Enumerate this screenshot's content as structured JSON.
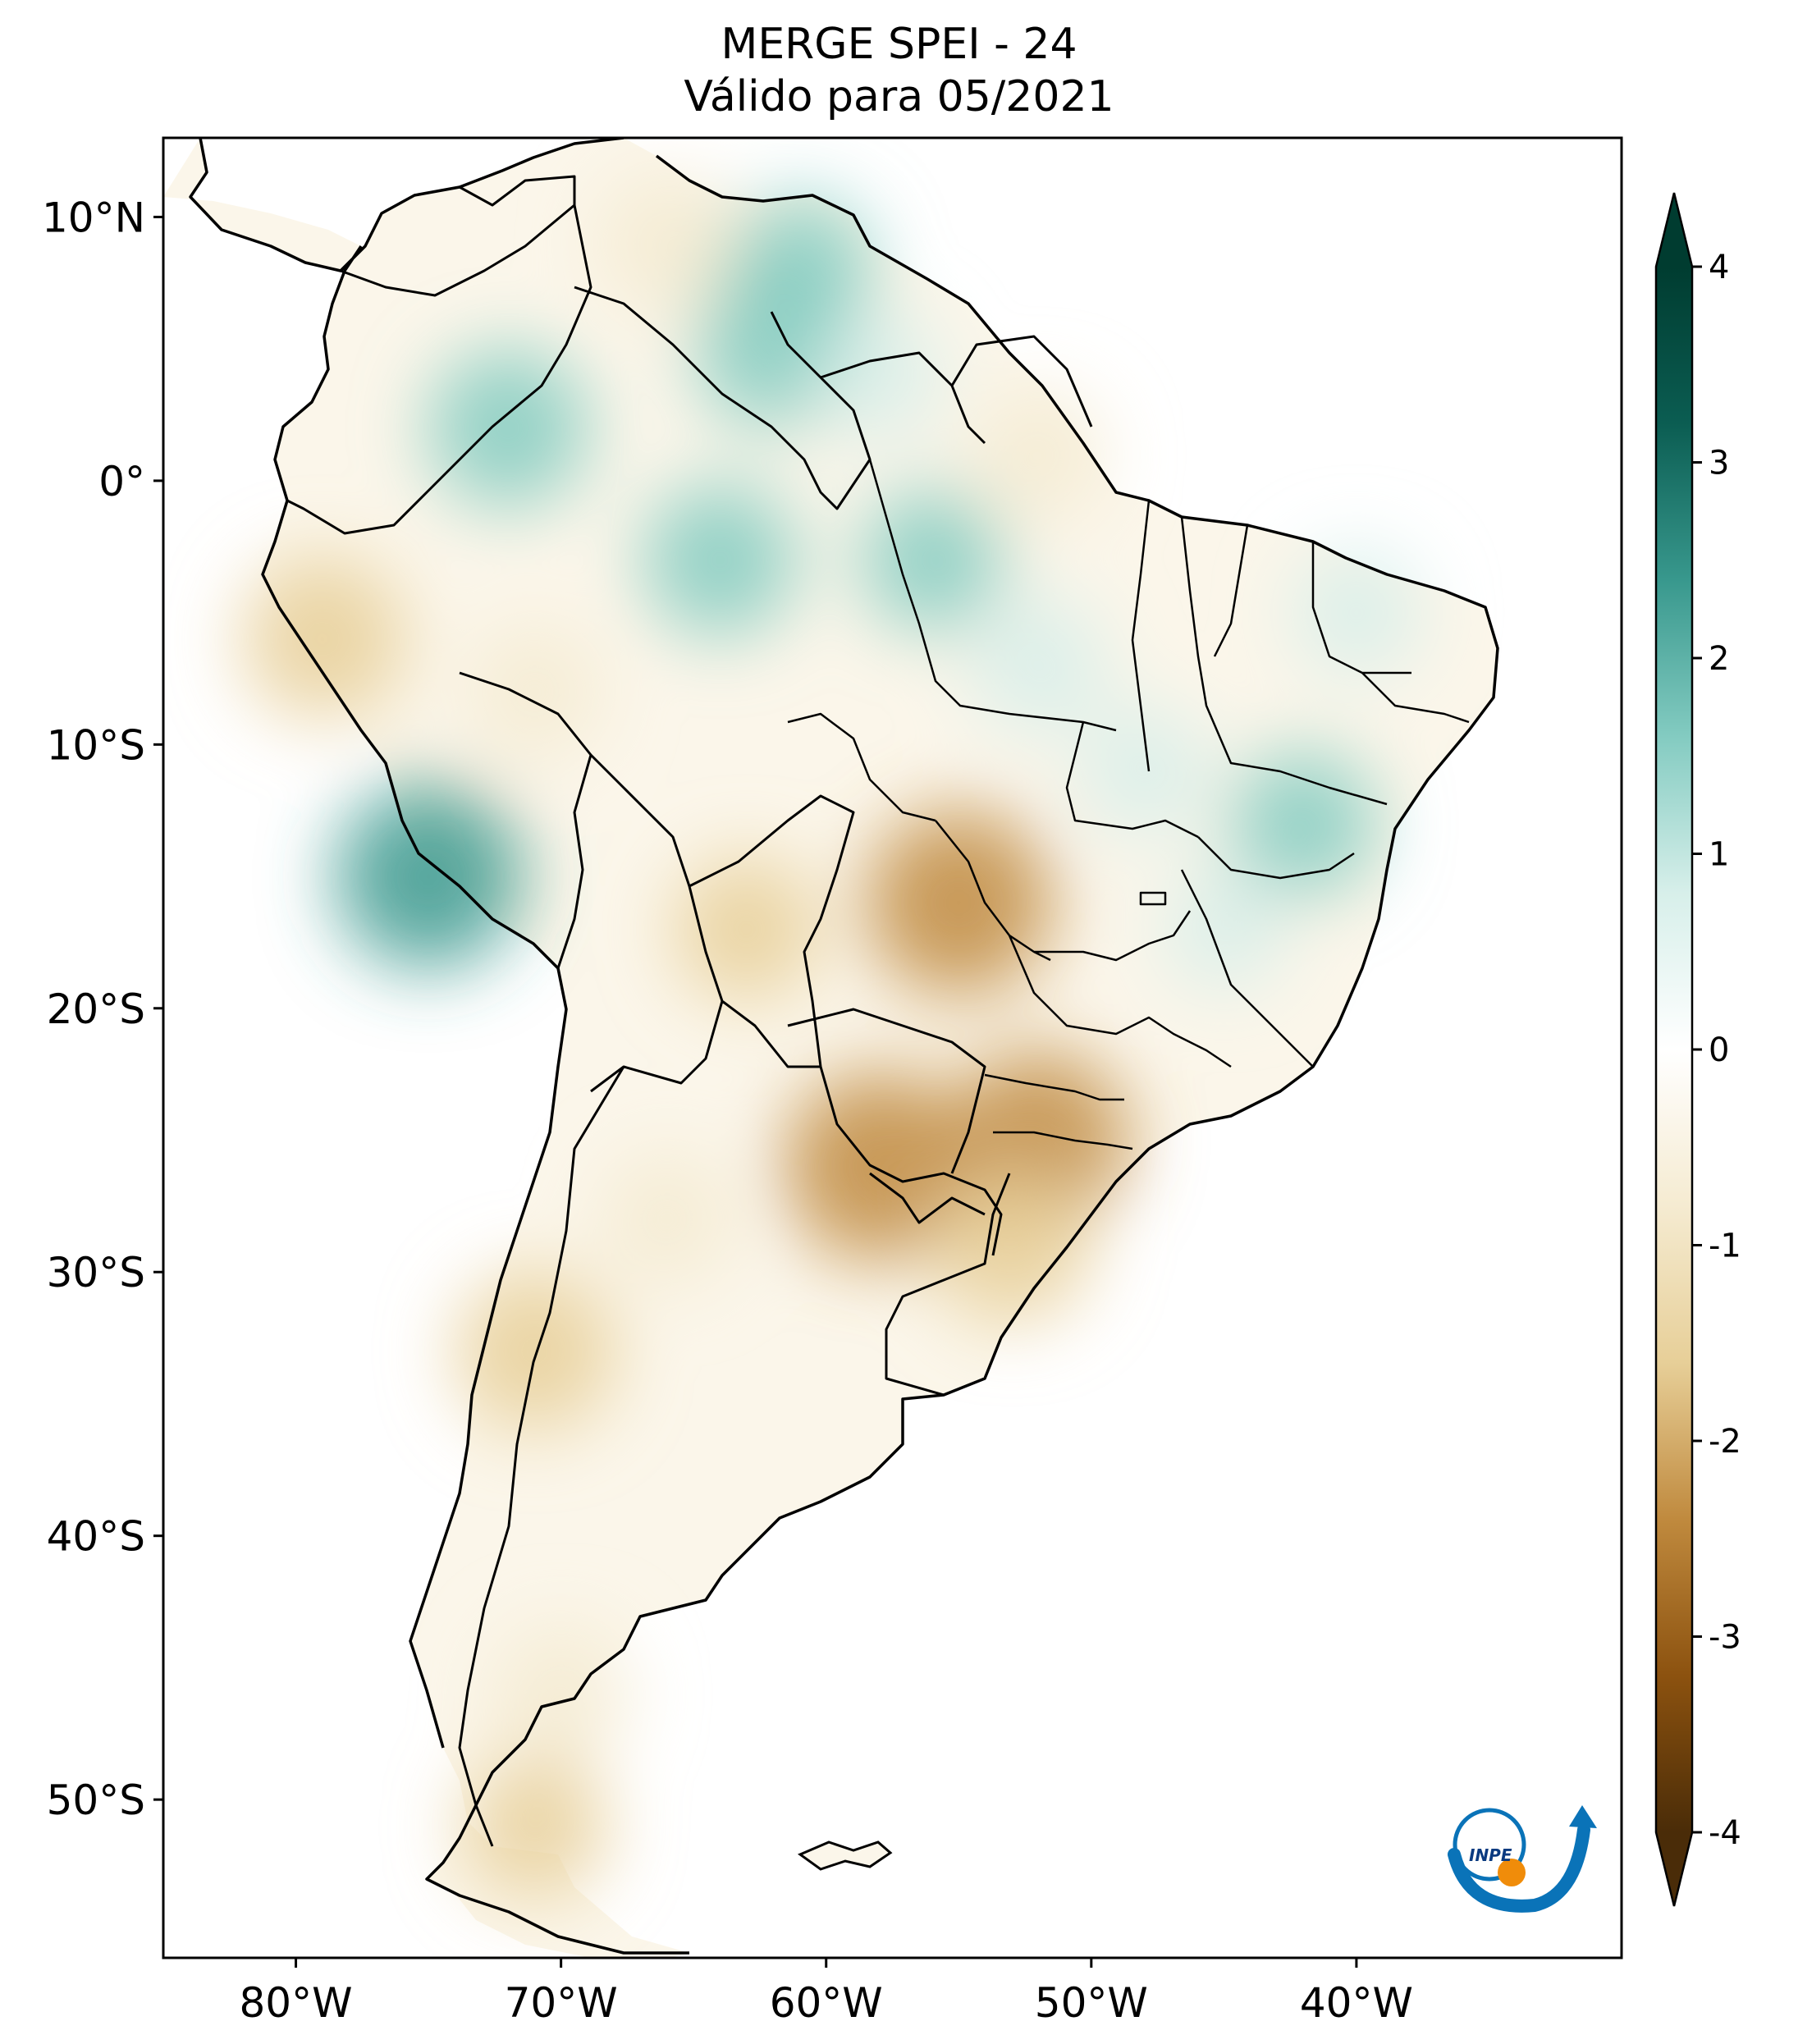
{
  "title": {
    "line1": "MERGE   SPEI - 24",
    "line2": "Válido para 05/2021"
  },
  "map": {
    "lon_range": [
      -85,
      -30
    ],
    "lat_range": [
      -56,
      13
    ],
    "lon_ticks": [
      {
        "value": -80,
        "label": "80°W"
      },
      {
        "value": -70,
        "label": "70°W"
      },
      {
        "value": -60,
        "label": "60°W"
      },
      {
        "value": -50,
        "label": "50°W"
      },
      {
        "value": -40,
        "label": "40°W"
      }
    ],
    "lat_ticks": [
      {
        "value": 10,
        "label": "10°N"
      },
      {
        "value": 0,
        "label": "0°"
      },
      {
        "value": -10,
        "label": "10°S"
      },
      {
        "value": -20,
        "label": "20°S"
      },
      {
        "value": -30,
        "label": "30°S"
      },
      {
        "value": -40,
        "label": "40°S"
      },
      {
        "value": -50,
        "label": "50°S"
      }
    ]
  },
  "colorbar": {
    "min": -4,
    "max": 4,
    "ticks": [
      {
        "value": 4,
        "label": "4"
      },
      {
        "value": 3,
        "label": "3"
      },
      {
        "value": 2,
        "label": "2"
      },
      {
        "value": 1,
        "label": "1"
      },
      {
        "value": 0,
        "label": "0"
      },
      {
        "value": -1,
        "label": "-1"
      },
      {
        "value": -2,
        "label": "-2"
      },
      {
        "value": -3,
        "label": "-3"
      },
      {
        "value": -4,
        "label": "-4"
      }
    ],
    "colors": [
      "#4a2c08",
      "#8c520f",
      "#c08a3e",
      "#e7cf98",
      "#f5ebd1",
      "#ffffff",
      "#d7efea",
      "#83cbc1",
      "#38988d",
      "#0b5d52",
      "#003c30"
    ]
  },
  "anomaly_regions": [
    {
      "name": "central-brazil-dry",
      "lon": -55,
      "lat": -16,
      "value": -2.4
    },
    {
      "name": "parana-dry",
      "lon": -52,
      "lat": -25,
      "value": -2.2
    },
    {
      "name": "paraguay-dry",
      "lon": -58,
      "lat": -26,
      "value": -2.5
    },
    {
      "name": "rio-grande-dry",
      "lon": -53,
      "lat": -29,
      "value": -1.6
    },
    {
      "name": "northern-peru-dry",
      "lon": -79,
      "lat": -6,
      "value": -1.8
    },
    {
      "name": "bolivia-dry",
      "lon": -63,
      "lat": -17,
      "value": -1.3
    },
    {
      "name": "chile-dry",
      "lon": -71,
      "lat": -33,
      "value": -1.7
    },
    {
      "name": "argentina-dry",
      "lon": -66,
      "lat": -28,
      "value": -1.0
    },
    {
      "name": "patagonia-dry",
      "lon": -70,
      "lat": -46,
      "value": -1.1
    },
    {
      "name": "southern-patagonia-dry",
      "lon": -71,
      "lat": -51,
      "value": -1.3
    },
    {
      "name": "venezuela-east-dry",
      "lon": -66,
      "lat": 9,
      "value": -1.2
    },
    {
      "name": "amapa-dry",
      "lon": -52,
      "lat": 1,
      "value": -0.9
    },
    {
      "name": "acre-dry",
      "lon": -71,
      "lat": -8,
      "value": -1.0
    },
    {
      "name": "colombia-wet",
      "lon": -72,
      "lat": 2,
      "value": 1.7
    },
    {
      "name": "amazon-wet",
      "lon": -64,
      "lat": -3,
      "value": 1.5
    },
    {
      "name": "roraima-wet",
      "lon": -62,
      "lat": 5,
      "value": 1.6
    },
    {
      "name": "venezuela-wet",
      "lon": -61,
      "lat": 8,
      "value": 1.3
    },
    {
      "name": "para-wet",
      "lon": -56,
      "lat": -3,
      "value": 1.2
    },
    {
      "name": "para-south-wet",
      "lon": -52,
      "lat": -7,
      "value": 1.1
    },
    {
      "name": "southern-peru-wet",
      "lon": -75,
      "lat": -15,
      "value": 2.4
    },
    {
      "name": "bahia-wet",
      "lon": -42,
      "lat": -13,
      "value": 1.3
    },
    {
      "name": "northeast-wet",
      "lon": -40,
      "lat": -5,
      "value": 0.9
    },
    {
      "name": "tocantins-wet",
      "lon": -48,
      "lat": -11,
      "value": 0.9
    },
    {
      "name": "minas-wet",
      "lon": -45,
      "lat": -17,
      "value": 0.7
    },
    {
      "name": "guyana-wet",
      "lon": -58,
      "lat": 4,
      "value": 0.8
    }
  ],
  "logo": {
    "text": "INPE"
  }
}
